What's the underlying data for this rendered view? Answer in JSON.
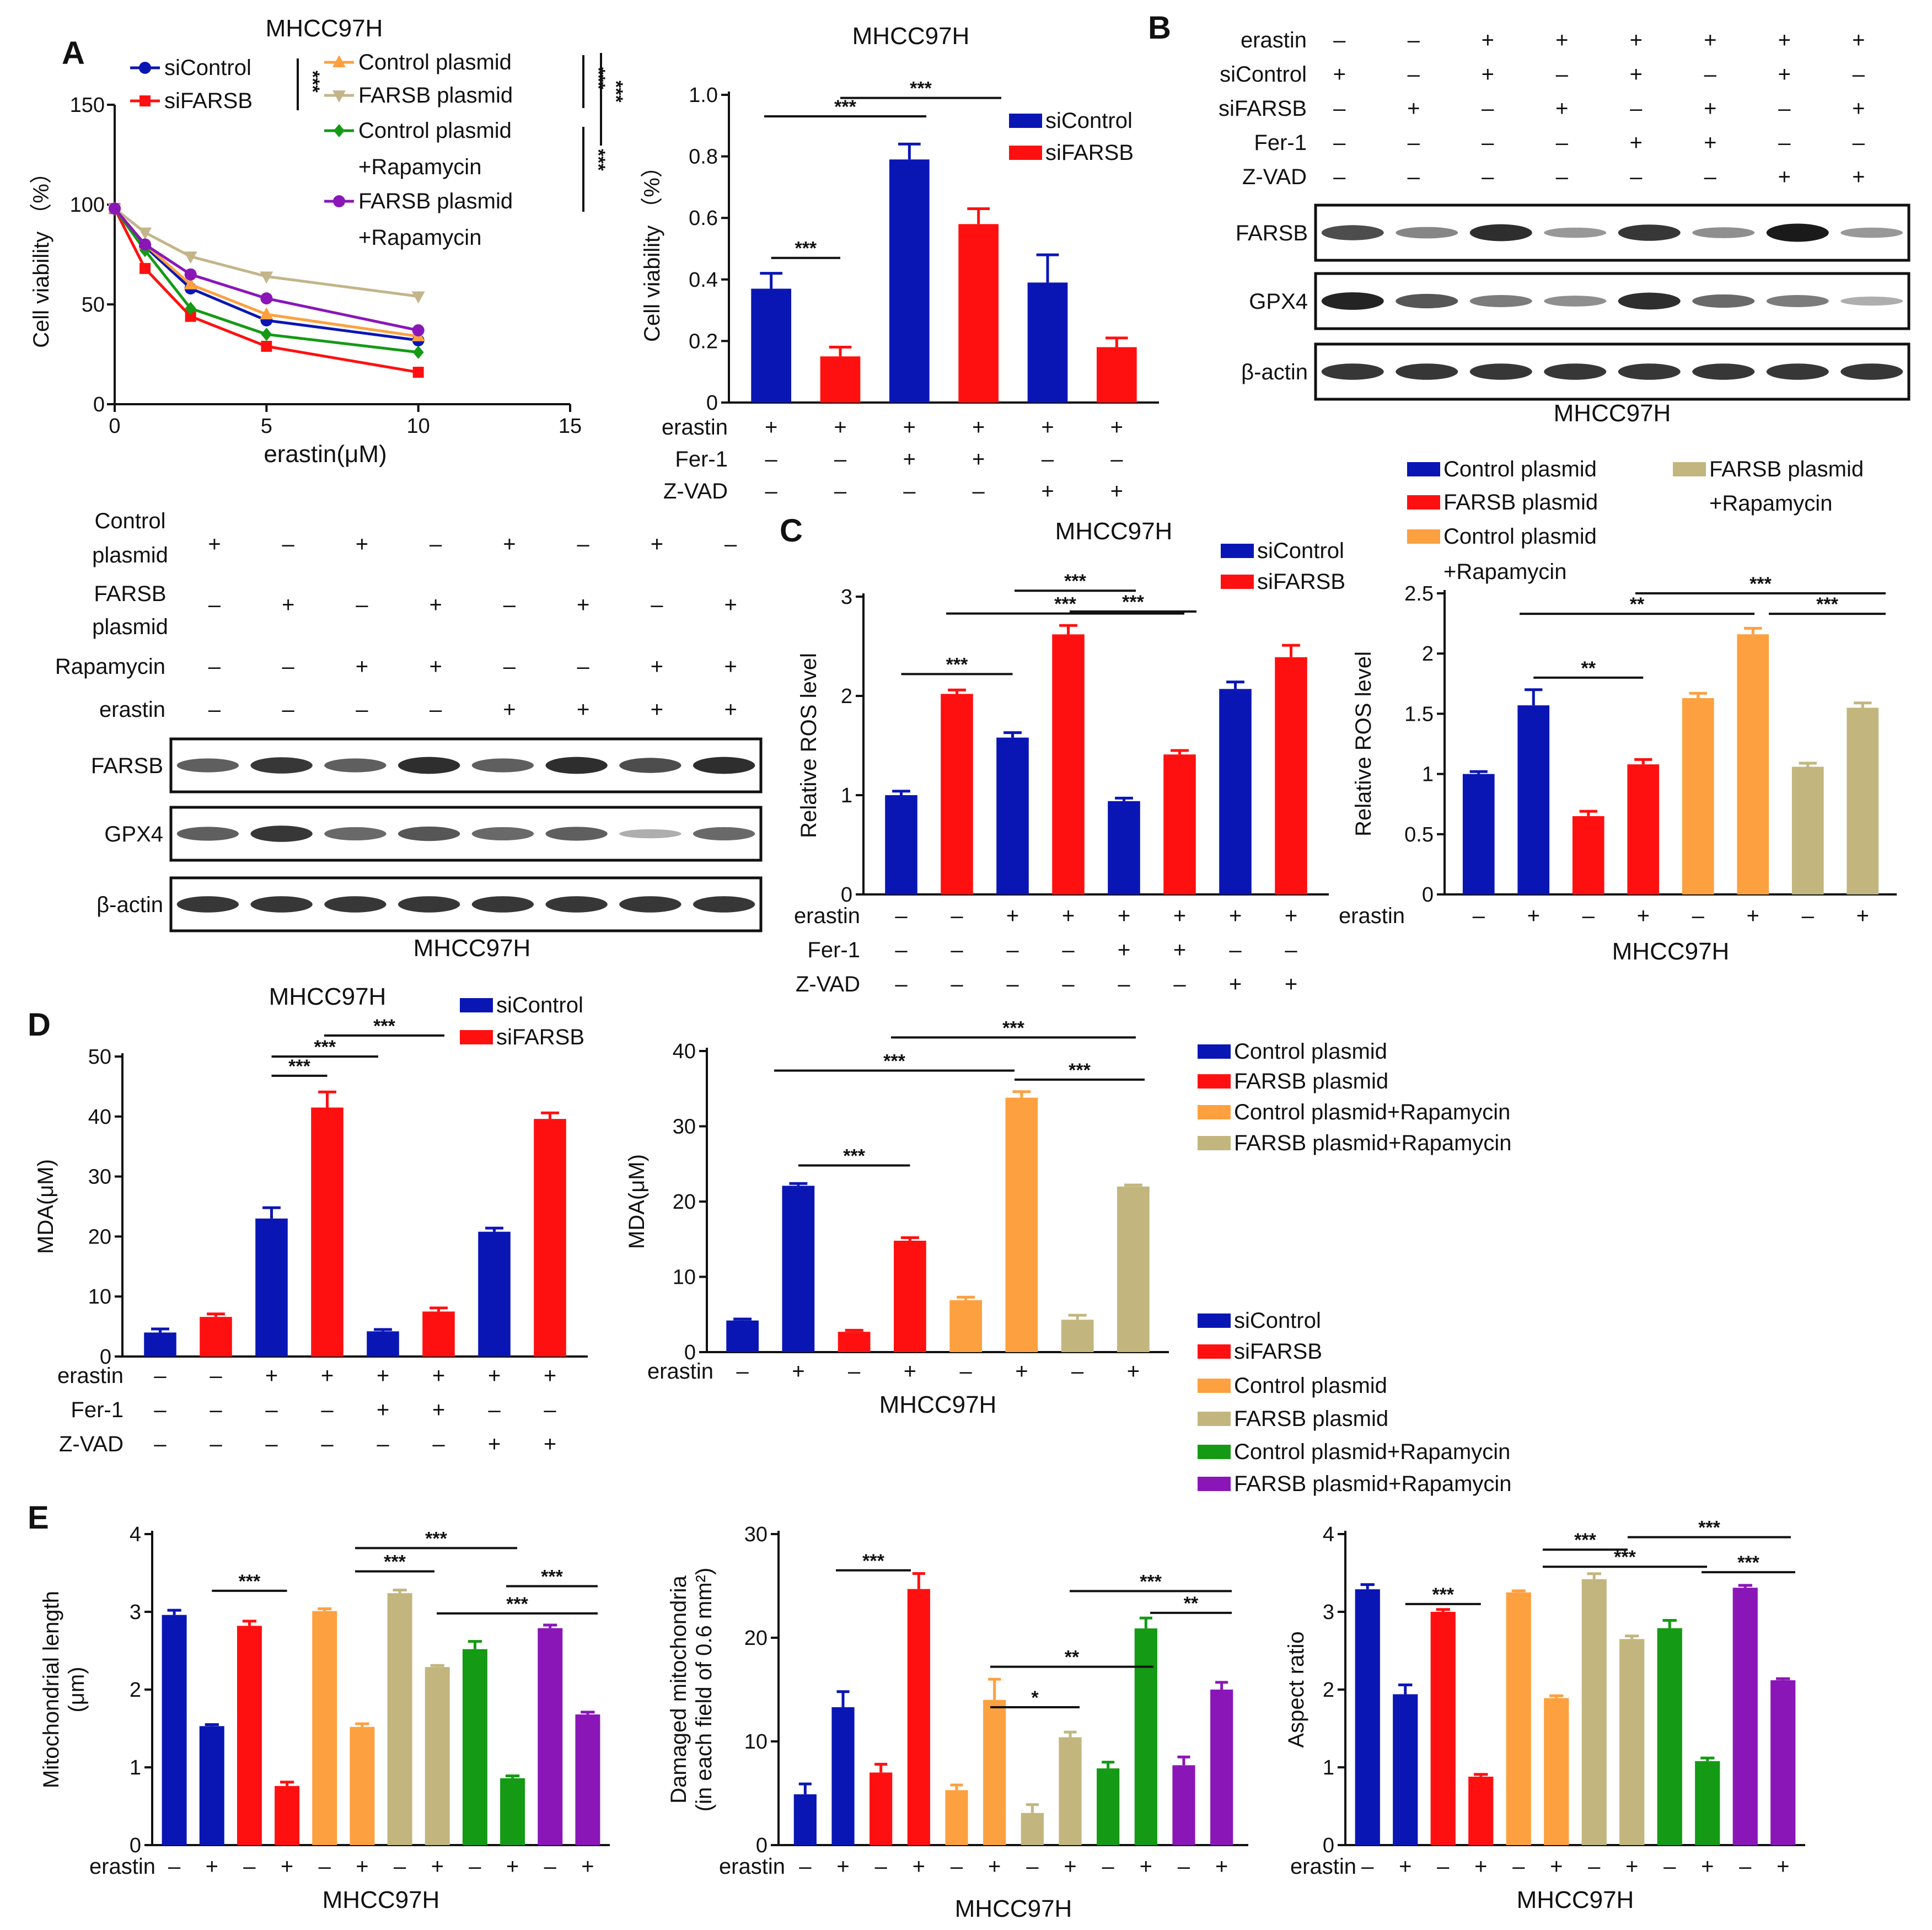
{
  "colors": {
    "blue": "#0a16b4",
    "red": "#ff1010",
    "orange": "#fda040",
    "khaki": "#c2b67e",
    "green": "#149a14",
    "purple": "#8a16b8",
    "tanline": "#c3b58a"
  },
  "cell_line": "MHCC97H",
  "panels": [
    "A",
    "B",
    "C",
    "D",
    "E"
  ],
  "significance": {
    "three": "***",
    "two": "**",
    "one": "*"
  },
  "signs": {
    "plus": "+",
    "minus": "–"
  },
  "blot_labels": {
    "farsb": "FARSB",
    "gpx4": "GPX4",
    "actin": "β-actin"
  },
  "treat_labels": {
    "erastin": "erastin",
    "fer1": "Fer-1",
    "zvad": "Z-VAD",
    "sicontrol": "siControl",
    "sifarsb": "siFARSB",
    "rapamycin": "Rapamycin",
    "control_plasmid_1": "Control",
    "control_plasmid_2": "plasmid",
    "farsb_plasmid_1": "FARSB",
    "farsb_plasmid_2": "plasmid"
  },
  "legend_labels": {
    "siControl": "siControl",
    "siFARSB": "siFARSB",
    "ctrl_plasmid": "Control plasmid",
    "farsb_plasmid": "FARSB plasmid",
    "ctrl_rapa_1": "Control plasmid",
    "ctrl_rapa_2": "+Rapamycin",
    "farsb_rapa_1": "FARSB plasmid",
    "farsb_rapa_2": "+Rapamycin",
    "ctrl_rapa_full": "Control plasmid+Rapamycin",
    "farsb_rapa_full": "FARSB plasmid+Rapamycin"
  },
  "chart_data": [
    {
      "id": "A-line",
      "type": "line",
      "title": "MHCC97H",
      "xlabel": "erastin(μM)",
      "ylabel": "Cell viability （%）",
      "xlim": [
        0,
        15
      ],
      "ylim": [
        0,
        150
      ],
      "xticks": [
        0,
        5,
        10,
        15
      ],
      "yticks": [
        0,
        50,
        100,
        150
      ],
      "x": [
        0,
        1,
        2.5,
        5,
        10
      ],
      "series": [
        {
          "name": "siControl",
          "color": "blue",
          "marker": "circle",
          "values": [
            98,
            79,
            58,
            42,
            32
          ]
        },
        {
          "name": "siFARSB",
          "color": "red",
          "marker": "square",
          "values": [
            98,
            68,
            44,
            29,
            16
          ]
        },
        {
          "name": "Control plasmid",
          "color": "orange",
          "marker": "triup",
          "values": [
            98,
            80,
            60,
            45,
            34
          ]
        },
        {
          "name": "FARSB plasmid",
          "color": "tanline",
          "marker": "tridown",
          "values": [
            98,
            86,
            74,
            64,
            54
          ]
        },
        {
          "name": "Control plasmid+Rapamycin",
          "color": "green",
          "marker": "diamond",
          "values": [
            98,
            77,
            48,
            35,
            26
          ]
        },
        {
          "name": "FARSB plasmid+Rapamycin",
          "color": "purple",
          "marker": "circle",
          "values": [
            98,
            80,
            65,
            53,
            37
          ]
        }
      ]
    },
    {
      "id": "A-bar",
      "type": "bar",
      "title": "MHCC97H",
      "ylabel": "Cell viability （%）",
      "ylim": [
        0,
        1.0
      ],
      "yticks": [
        0,
        0.2,
        0.4,
        0.6,
        0.8,
        1.0
      ],
      "ytick_labels": [
        "0",
        "0.2",
        "0.4",
        "0.6",
        "0.8",
        "1.0"
      ],
      "legend": [
        "siControl",
        "siFARSB"
      ],
      "colors": [
        "blue",
        "red",
        "blue",
        "red",
        "blue",
        "red"
      ],
      "values": [
        0.37,
        0.15,
        0.79,
        0.58,
        0.39,
        0.18
      ],
      "errors": [
        0.05,
        0.03,
        0.05,
        0.05,
        0.09,
        0.03
      ],
      "treatments": {
        "erastin": [
          "+",
          "+",
          "+",
          "+",
          "+",
          "+"
        ],
        "Fer-1": [
          "–",
          "–",
          "+",
          "+",
          "–",
          "–"
        ],
        "Z-VAD": [
          "–",
          "–",
          "–",
          "–",
          "+",
          "+"
        ]
      }
    },
    {
      "id": "C-si",
      "type": "bar",
      "title": "MHCC97H",
      "ylabel": "Relative ROS level",
      "ylim": [
        0,
        3
      ],
      "yticks": [
        0,
        1,
        2,
        3
      ],
      "ytick_labels": [
        "0",
        "1",
        "2",
        "3"
      ],
      "legend": [
        "siControl",
        "siFARSB"
      ],
      "colors": [
        "blue",
        "red",
        "blue",
        "red",
        "blue",
        "red",
        "blue",
        "red"
      ],
      "values": [
        1.0,
        2.02,
        1.58,
        2.62,
        0.94,
        1.41,
        2.07,
        2.39
      ],
      "errors": [
        0.04,
        0.04,
        0.05,
        0.09,
        0.03,
        0.04,
        0.07,
        0.12
      ],
      "treatments": {
        "erastin": [
          "–",
          "–",
          "+",
          "+",
          "+",
          "+",
          "+",
          "+"
        ],
        "Fer-1": [
          "–",
          "–",
          "–",
          "–",
          "+",
          "+",
          "–",
          "–"
        ],
        "Z-VAD": [
          "–",
          "–",
          "–",
          "–",
          "–",
          "–",
          "+",
          "+"
        ]
      }
    },
    {
      "id": "C-plasmid",
      "type": "bar",
      "xlabel": "MHCC97H",
      "ylabel": "Relative ROS level",
      "ylim": [
        0,
        2.5
      ],
      "yticks": [
        0,
        0.5,
        1,
        1.5,
        2,
        2.5
      ],
      "ytick_labels": [
        "0",
        "0.5",
        "1",
        "1.5",
        "2",
        "2.5"
      ],
      "legend": [
        "Control plasmid",
        "FARSB plasmid",
        "Control plasmid+Rapamycin",
        "FARSB plasmid+Rapamycin"
      ],
      "colors": [
        "blue",
        "blue",
        "red",
        "red",
        "orange",
        "orange",
        "khaki",
        "khaki"
      ],
      "values": [
        1.0,
        1.57,
        0.65,
        1.08,
        1.63,
        2.16,
        1.06,
        1.55
      ],
      "errors": [
        0.02,
        0.13,
        0.04,
        0.04,
        0.04,
        0.05,
        0.03,
        0.04
      ],
      "treatments": {
        "erastin": [
          "–",
          "+",
          "–",
          "+",
          "–",
          "+",
          "–",
          "+"
        ]
      }
    },
    {
      "id": "D-si",
      "type": "bar",
      "title": "MHCC97H",
      "ylabel": "MDA(μM)",
      "ylim": [
        0,
        50
      ],
      "yticks": [
        0,
        10,
        20,
        30,
        40,
        50
      ],
      "ytick_labels": [
        "0",
        "10",
        "20",
        "30",
        "40",
        "50"
      ],
      "legend": [
        "siControl",
        "siFARSB"
      ],
      "colors": [
        "blue",
        "red",
        "blue",
        "red",
        "blue",
        "red",
        "blue",
        "red"
      ],
      "values": [
        4.0,
        6.6,
        23.0,
        41.5,
        4.2,
        7.5,
        20.8,
        39.6
      ],
      "errors": [
        0.6,
        0.5,
        1.8,
        2.6,
        0.3,
        0.6,
        0.6,
        1.0
      ],
      "treatments": {
        "erastin": [
          "–",
          "–",
          "+",
          "+",
          "+",
          "+",
          "+",
          "+"
        ],
        "Fer-1": [
          "–",
          "–",
          "–",
          "–",
          "+",
          "+",
          "–",
          "–"
        ],
        "Z-VAD": [
          "–",
          "–",
          "–",
          "–",
          "–",
          "–",
          "+",
          "+"
        ]
      }
    },
    {
      "id": "D-plasmid",
      "type": "bar",
      "xlabel": "MHCC97H",
      "ylabel": "MDA(μM)",
      "ylim": [
        0,
        40
      ],
      "yticks": [
        0,
        10,
        20,
        30,
        40
      ],
      "ytick_labels": [
        "0",
        "10",
        "20",
        "30",
        "40"
      ],
      "legend": [
        "Control plasmid",
        "FARSB plasmid",
        "Control plasmid+Rapamycin",
        "FARSB plasmid+Rapamycin"
      ],
      "colors": [
        "blue",
        "blue",
        "red",
        "red",
        "orange",
        "orange",
        "khaki",
        "khaki"
      ],
      "values": [
        4.2,
        22.1,
        2.7,
        14.8,
        6.9,
        33.8,
        4.3,
        22.0
      ],
      "errors": [
        0.2,
        0.3,
        0.2,
        0.4,
        0.4,
        0.8,
        0.6,
        0.2
      ],
      "treatments": {
        "erastin": [
          "–",
          "+",
          "–",
          "+",
          "–",
          "+",
          "–",
          "+"
        ]
      }
    },
    {
      "id": "E-length",
      "type": "bar",
      "xlabel": "MHCC97H",
      "ylabel": "Mitochondrial length (μm)",
      "ylim": [
        0,
        4
      ],
      "yticks": [
        0,
        1,
        2,
        3,
        4
      ],
      "ytick_labels": [
        "0",
        "1",
        "2",
        "3",
        "4"
      ],
      "legend": [
        "siControl",
        "siFARSB",
        "Control plasmid",
        "FARSB plasmid",
        "Control plasmid+Rapamycin",
        "FARSB plasmid+Rapamycin"
      ],
      "colors": [
        "blue",
        "blue",
        "red",
        "red",
        "orange",
        "orange",
        "khaki",
        "khaki",
        "green",
        "green",
        "purple",
        "purple"
      ],
      "values": [
        2.96,
        1.53,
        2.82,
        0.76,
        3.01,
        1.52,
        3.24,
        2.29,
        2.52,
        0.86,
        2.79,
        1.68
      ],
      "errors": [
        0.06,
        0.02,
        0.06,
        0.05,
        0.03,
        0.04,
        0.04,
        0.02,
        0.1,
        0.03,
        0.04,
        0.03
      ],
      "treatments": {
        "erastin": [
          "–",
          "+",
          "–",
          "+",
          "–",
          "+",
          "–",
          "+",
          "–",
          "+",
          "–",
          "+"
        ]
      }
    },
    {
      "id": "E-damaged",
      "type": "bar",
      "xlabel": "MHCC97H",
      "ylabel": "Damaged mitochondria (in each field of 0.6 mm²)",
      "ylim": [
        0,
        30
      ],
      "yticks": [
        0,
        10,
        20,
        30
      ],
      "ytick_labels": [
        "0",
        "10",
        "20",
        "30"
      ],
      "colors": [
        "blue",
        "blue",
        "red",
        "red",
        "orange",
        "orange",
        "khaki",
        "khaki",
        "green",
        "green",
        "purple",
        "purple"
      ],
      "values": [
        4.9,
        13.3,
        7.0,
        24.7,
        5.3,
        14.0,
        3.1,
        10.4,
        7.4,
        20.9,
        7.7,
        15.0
      ],
      "errors": [
        1.0,
        1.5,
        0.8,
        1.5,
        0.5,
        2.0,
        0.8,
        0.5,
        0.6,
        1.0,
        0.8,
        0.7
      ],
      "treatments": {
        "erastin": [
          "–",
          "+",
          "–",
          "+",
          "–",
          "+",
          "–",
          "+",
          "–",
          "+",
          "–",
          "+"
        ]
      }
    },
    {
      "id": "E-aspect",
      "type": "bar",
      "xlabel": "MHCC97H",
      "ylabel": "Aspect ratio",
      "ylim": [
        0,
        4
      ],
      "yticks": [
        0,
        1,
        2,
        3,
        4
      ],
      "ytick_labels": [
        "0",
        "1",
        "2",
        "3",
        "4"
      ],
      "colors": [
        "blue",
        "blue",
        "red",
        "red",
        "orange",
        "orange",
        "khaki",
        "khaki",
        "green",
        "green",
        "purple",
        "purple"
      ],
      "values": [
        3.29,
        1.94,
        3.0,
        0.88,
        3.25,
        1.89,
        3.42,
        2.65,
        2.79,
        1.08,
        3.31,
        2.12
      ],
      "errors": [
        0.06,
        0.12,
        0.03,
        0.03,
        0.02,
        0.03,
        0.07,
        0.04,
        0.1,
        0.04,
        0.03,
        0.02
      ],
      "treatments": {
        "erastin": [
          "–",
          "+",
          "–",
          "+",
          "–",
          "+",
          "–",
          "+",
          "–",
          "+",
          "–",
          "+"
        ]
      }
    }
  ],
  "blots": {
    "B": {
      "treatments": {
        "erastin": [
          "–",
          "–",
          "+",
          "+",
          "+",
          "+",
          "+",
          "+"
        ],
        "siControl": [
          "+",
          "–",
          "+",
          "–",
          "+",
          "–",
          "+",
          "–"
        ],
        "siFARSB": [
          "–",
          "+",
          "–",
          "+",
          "–",
          "+",
          "–",
          "+"
        ],
        "Fer-1": [
          "–",
          "–",
          "–",
          "–",
          "+",
          "+",
          "–",
          "–"
        ],
        "Z-VAD": [
          "–",
          "–",
          "–",
          "–",
          "–",
          "–",
          "+",
          "+"
        ]
      },
      "farsb": [
        0.7,
        0.4,
        0.85,
        0.3,
        0.8,
        0.35,
        0.95,
        0.3
      ],
      "gpx4": [
        0.9,
        0.65,
        0.45,
        0.35,
        0.85,
        0.55,
        0.45,
        0.2
      ],
      "actin": [
        0.8,
        0.8,
        0.8,
        0.8,
        0.8,
        0.8,
        0.8,
        0.8
      ]
    },
    "A2": {
      "treatments": {
        "Control plasmid": [
          "+",
          "–",
          "+",
          "–",
          "+",
          "–",
          "+",
          "–"
        ],
        "FARSB plasmid": [
          "–",
          "+",
          "–",
          "+",
          "–",
          "+",
          "–",
          "+"
        ],
        "Rapamycin": [
          "–",
          "–",
          "+",
          "+",
          "–",
          "–",
          "+",
          "+"
        ],
        "erastin": [
          "–",
          "–",
          "–",
          "–",
          "+",
          "+",
          "+",
          "+"
        ]
      },
      "farsb": [
        0.6,
        0.8,
        0.6,
        0.85,
        0.6,
        0.85,
        0.7,
        0.85
      ],
      "gpx4": [
        0.6,
        0.8,
        0.55,
        0.65,
        0.55,
        0.6,
        0.2,
        0.55
      ],
      "actin": [
        0.8,
        0.8,
        0.8,
        0.8,
        0.8,
        0.8,
        0.8,
        0.8
      ]
    }
  }
}
